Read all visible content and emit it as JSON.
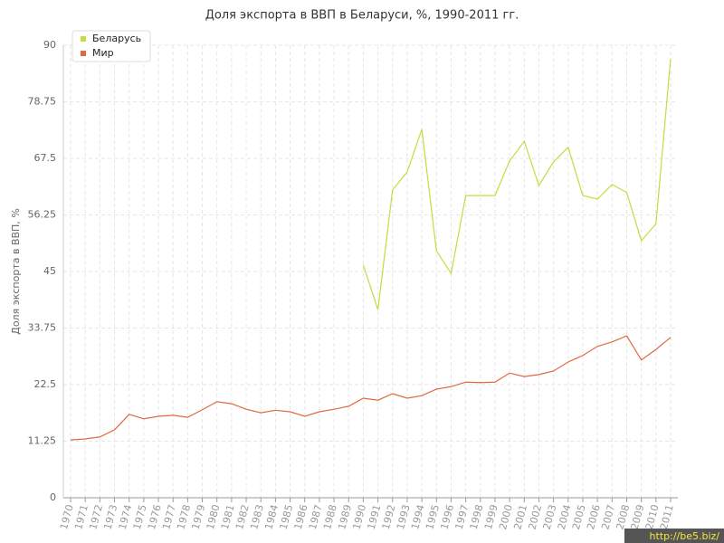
{
  "chart_data": {
    "type": "line",
    "title": "Доля экспорта в ВВП в Беларуси, %, 1990-2011 гг.",
    "y_label": "Доля экспорта в ВВП, %",
    "categories": [
      "1970",
      "1971",
      "1972",
      "1973",
      "1974",
      "1975",
      "1976",
      "1977",
      "1978",
      "1979",
      "1980",
      "1981",
      "1982",
      "1983",
      "1984",
      "1985",
      "1986",
      "1987",
      "1988",
      "1989",
      "1990",
      "1991",
      "1992",
      "1993",
      "1994",
      "1995",
      "1996",
      "1997",
      "1998",
      "1999",
      "2000",
      "2001",
      "2002",
      "2003",
      "2004",
      "2005",
      "2006",
      "2007",
      "2008",
      "2009",
      "2010",
      "2011"
    ],
    "series": [
      {
        "name": "Беларусь",
        "color": "#c3dc3f",
        "values": [
          null,
          null,
          null,
          null,
          null,
          null,
          null,
          null,
          null,
          null,
          null,
          null,
          null,
          null,
          null,
          null,
          null,
          null,
          null,
          null,
          46.3,
          37.4,
          61.2,
          64.8,
          73.3,
          49.1,
          44.6,
          60.1,
          60.1,
          60.1,
          67.0,
          70.9,
          62.1,
          66.8,
          69.7,
          60.1,
          59.4,
          62.3,
          60.7,
          51.1,
          54.5,
          87.3
        ]
      },
      {
        "name": "Мир",
        "color": "#e0693f",
        "values": [
          11.5,
          11.7,
          12.1,
          13.5,
          16.6,
          15.7,
          16.2,
          16.4,
          16.0,
          17.5,
          19.1,
          18.7,
          17.6,
          16.9,
          17.4,
          17.1,
          16.2,
          17.1,
          17.6,
          18.2,
          19.8,
          19.4,
          20.7,
          19.8,
          20.3,
          21.6,
          22.1,
          23.0,
          22.9,
          23.0,
          24.8,
          24.1,
          24.5,
          25.2,
          27.0,
          28.3,
          30.1,
          31.0,
          32.2,
          27.4,
          29.5,
          31.9
        ]
      }
    ],
    "ylim": [
      0,
      90
    ],
    "yticks": [
      0,
      11.25,
      22.5,
      33.75,
      45,
      56.25,
      67.5,
      78.75,
      90
    ],
    "grid": true,
    "legend": "top-left",
    "watermark": "http://be5.biz/"
  }
}
